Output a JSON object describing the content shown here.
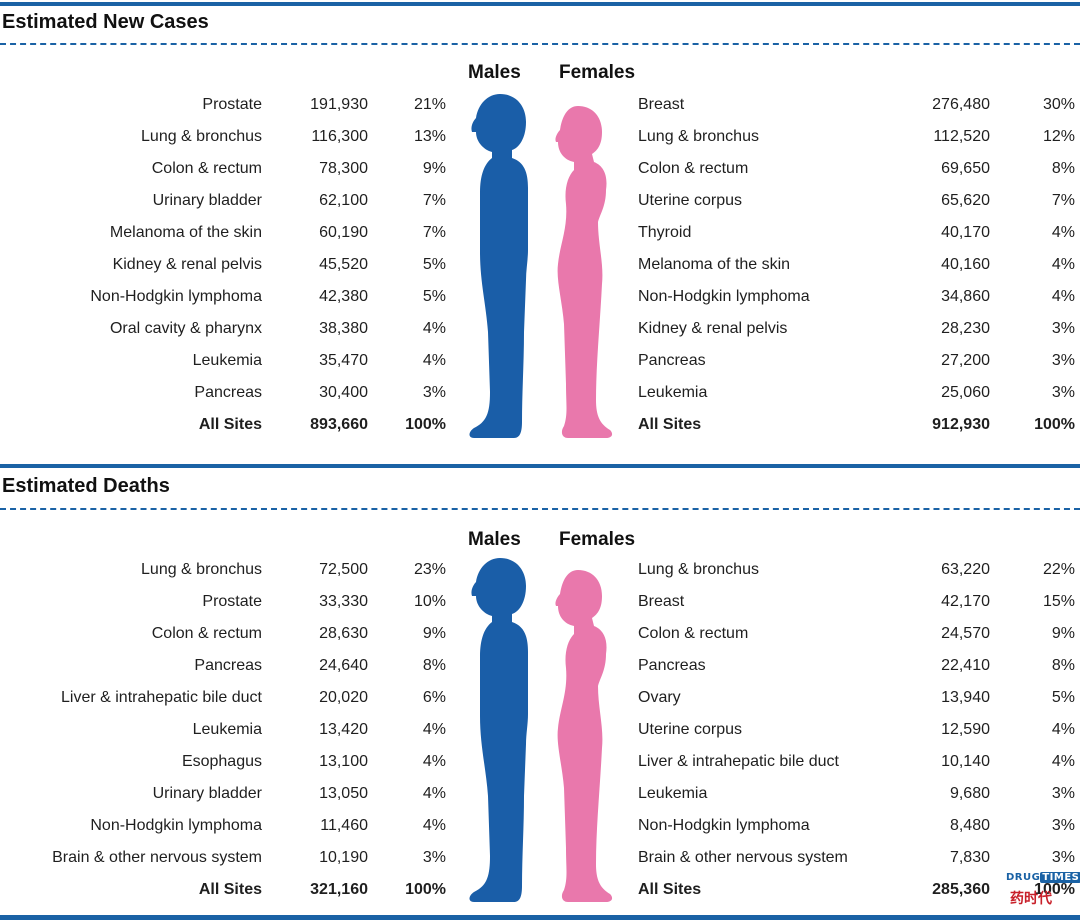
{
  "chart_data": [
    {
      "type": "table",
      "title": "Estimated New Cases",
      "header_left": "Males",
      "header_right": "Females",
      "colors": {
        "male": "#1a5ea8",
        "female": "#e978ac",
        "rule": "#1a62a5"
      },
      "males": [
        {
          "site": "Prostate",
          "count": "191,930",
          "pct": "21%"
        },
        {
          "site": "Lung & bronchus",
          "count": "116,300",
          "pct": "13%"
        },
        {
          "site": "Colon & rectum",
          "count": "78,300",
          "pct": "9%"
        },
        {
          "site": "Urinary bladder",
          "count": "62,100",
          "pct": "7%"
        },
        {
          "site": "Melanoma of the skin",
          "count": "60,190",
          "pct": "7%"
        },
        {
          "site": "Kidney & renal pelvis",
          "count": "45,520",
          "pct": "5%"
        },
        {
          "site": "Non-Hodgkin lymphoma",
          "count": "42,380",
          "pct": "5%"
        },
        {
          "site": "Oral cavity & pharynx",
          "count": "38,380",
          "pct": "4%"
        },
        {
          "site": "Leukemia",
          "count": "35,470",
          "pct": "4%"
        },
        {
          "site": "Pancreas",
          "count": "30,400",
          "pct": "3%"
        }
      ],
      "males_total": {
        "site": "All Sites",
        "count": "893,660",
        "pct": "100%"
      },
      "females": [
        {
          "site": "Breast",
          "count": "276,480",
          "pct": "30%"
        },
        {
          "site": "Lung & bronchus",
          "count": "112,520",
          "pct": "12%"
        },
        {
          "site": "Colon & rectum",
          "count": "69,650",
          "pct": "8%"
        },
        {
          "site": "Uterine corpus",
          "count": "65,620",
          "pct": "7%"
        },
        {
          "site": "Thyroid",
          "count": "40,170",
          "pct": "4%"
        },
        {
          "site": "Melanoma of the skin",
          "count": "40,160",
          "pct": "4%"
        },
        {
          "site": "Non-Hodgkin lymphoma",
          "count": "34,860",
          "pct": "4%"
        },
        {
          "site": "Kidney & renal pelvis",
          "count": "28,230",
          "pct": "3%"
        },
        {
          "site": "Pancreas",
          "count": "27,200",
          "pct": "3%"
        },
        {
          "site": "Leukemia",
          "count": "25,060",
          "pct": "3%"
        }
      ],
      "females_total": {
        "site": "All Sites",
        "count": "912,930",
        "pct": "100%"
      }
    },
    {
      "type": "table",
      "title": "Estimated Deaths",
      "header_left": "Males",
      "header_right": "Females",
      "colors": {
        "male": "#1a5ea8",
        "female": "#e978ac",
        "rule": "#1a62a5"
      },
      "males": [
        {
          "site": "Lung & bronchus",
          "count": "72,500",
          "pct": "23%"
        },
        {
          "site": "Prostate",
          "count": "33,330",
          "pct": "10%"
        },
        {
          "site": "Colon & rectum",
          "count": "28,630",
          "pct": "9%"
        },
        {
          "site": "Pancreas",
          "count": "24,640",
          "pct": "8%"
        },
        {
          "site": "Liver & intrahepatic bile duct",
          "count": "20,020",
          "pct": "6%"
        },
        {
          "site": "Leukemia",
          "count": "13,420",
          "pct": "4%"
        },
        {
          "site": "Esophagus",
          "count": "13,100",
          "pct": "4%"
        },
        {
          "site": "Urinary bladder",
          "count": "13,050",
          "pct": "4%"
        },
        {
          "site": "Non-Hodgkin lymphoma",
          "count": "11,460",
          "pct": "4%"
        },
        {
          "site": "Brain & other nervous system",
          "count": "10,190",
          "pct": "3%"
        }
      ],
      "males_total": {
        "site": "All Sites",
        "count": "321,160",
        "pct": "100%"
      },
      "females": [
        {
          "site": "Lung & bronchus",
          "count": "63,220",
          "pct": "22%"
        },
        {
          "site": "Breast",
          "count": "42,170",
          "pct": "15%"
        },
        {
          "site": "Colon & rectum",
          "count": "24,570",
          "pct": "9%"
        },
        {
          "site": "Pancreas",
          "count": "22,410",
          "pct": "8%"
        },
        {
          "site": "Ovary",
          "count": "13,940",
          "pct": "5%"
        },
        {
          "site": "Uterine corpus",
          "count": "12,590",
          "pct": "4%"
        },
        {
          "site": "Liver & intrahepatic bile duct",
          "count": "10,140",
          "pct": "4%"
        },
        {
          "site": "Leukemia",
          "count": "9,680",
          "pct": "3%"
        },
        {
          "site": "Non-Hodgkin lymphoma",
          "count": "8,480",
          "pct": "3%"
        },
        {
          "site": "Brain & other nervous system",
          "count": "7,830",
          "pct": "3%"
        }
      ],
      "females_total": {
        "site": "All Sites",
        "count": "285,360",
        "pct": "100%"
      }
    }
  ],
  "watermark": {
    "line1_a": "DRUG",
    "line1_b": "TIMES",
    "line2": "药时代"
  }
}
